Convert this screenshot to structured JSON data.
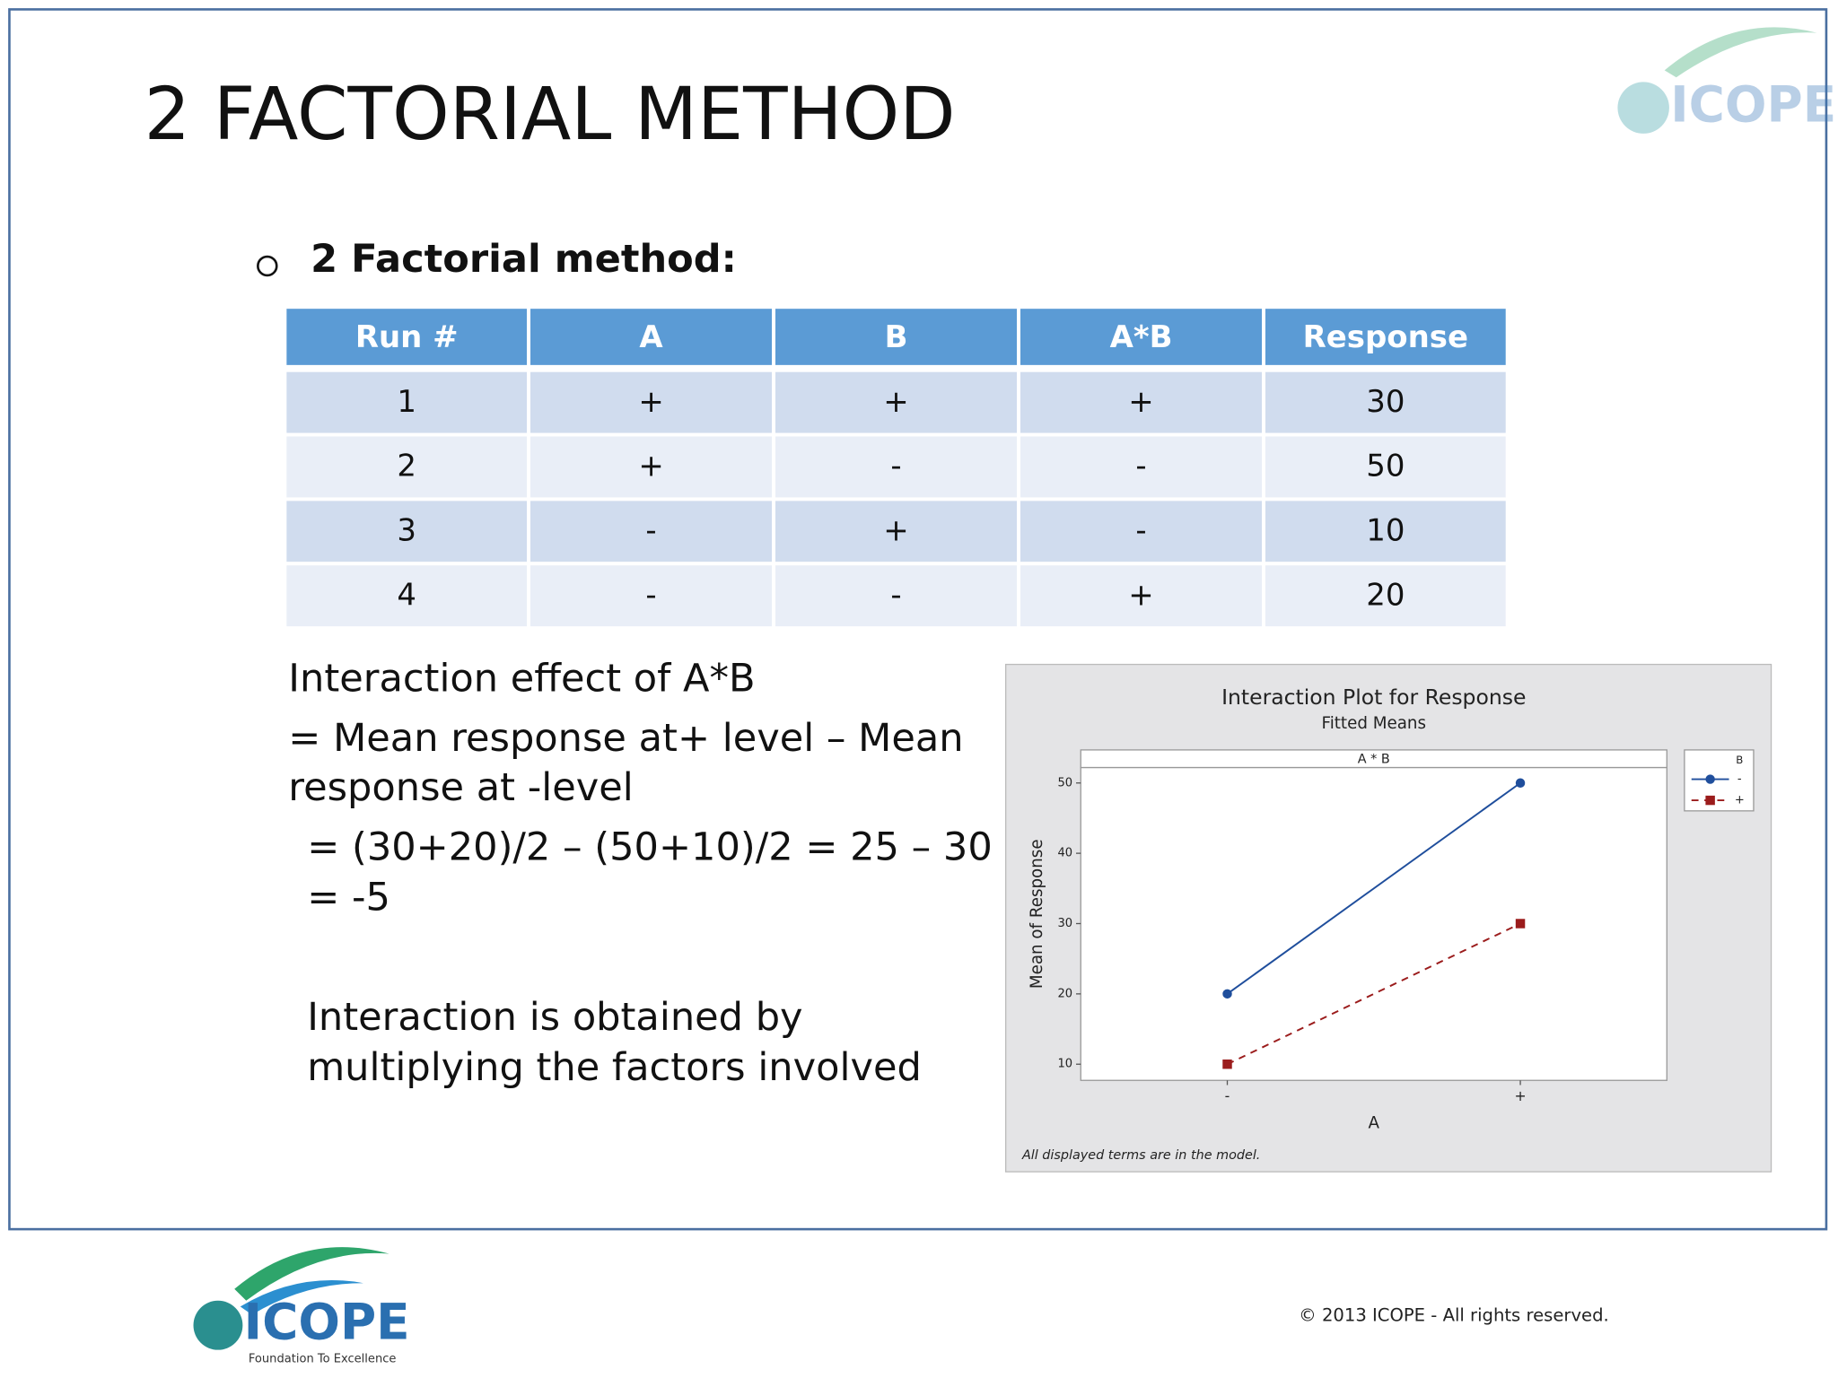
{
  "header": {
    "title": "2 FACTORIAL METHOD",
    "logo_name": "ICOPE",
    "logo_tagline": "Foundation To Excellence"
  },
  "bullet": "2 Factorial method:",
  "table": {
    "header": [
      "Run #",
      "A",
      "B",
      "A*B",
      "Response"
    ],
    "rows": [
      [
        "1",
        "+",
        "+",
        "+",
        "30"
      ],
      [
        "2",
        "+",
        "-",
        "-",
        "50"
      ],
      [
        "3",
        "-",
        "+",
        "-",
        "10"
      ],
      [
        "4",
        "-",
        "-",
        "+",
        "20"
      ]
    ]
  },
  "text": {
    "effect_lines": [
      "Interaction effect of A*B",
      "= Mean response at+ level – Mean",
      "response at -level"
    ],
    "calc_lines": [
      "= (30+20)/2 – (50+10)/2 = 25 – 30",
      "= -5"
    ],
    "note_lines": [
      "Interaction is obtained by",
      "multiplying the factors involved"
    ]
  },
  "chart_data": {
    "type": "line",
    "title": "Interaction Plot for Response",
    "subtitle": "Fitted Means",
    "panel_label": "A * B",
    "ylabel": "Mean of Response",
    "xlabel": "A",
    "legend_title": "B",
    "footnote": "All displayed terms are in the model.",
    "categories": [
      "-",
      "+"
    ],
    "series": [
      {
        "name": "-",
        "color": "#1f4e9c",
        "marker": "circle",
        "dashed": false,
        "values": [
          20,
          50
        ]
      },
      {
        "name": "+",
        "color": "#9b1c1c",
        "marker": "square",
        "dashed": true,
        "values": [
          10,
          30
        ]
      }
    ],
    "ylim": [
      7.7,
      52.2
    ],
    "yticks": [
      10,
      20,
      30,
      40,
      50
    ],
    "legend": "right"
  },
  "footer": {
    "copyright": "©  2013 ICOPE - All rights reserved."
  }
}
